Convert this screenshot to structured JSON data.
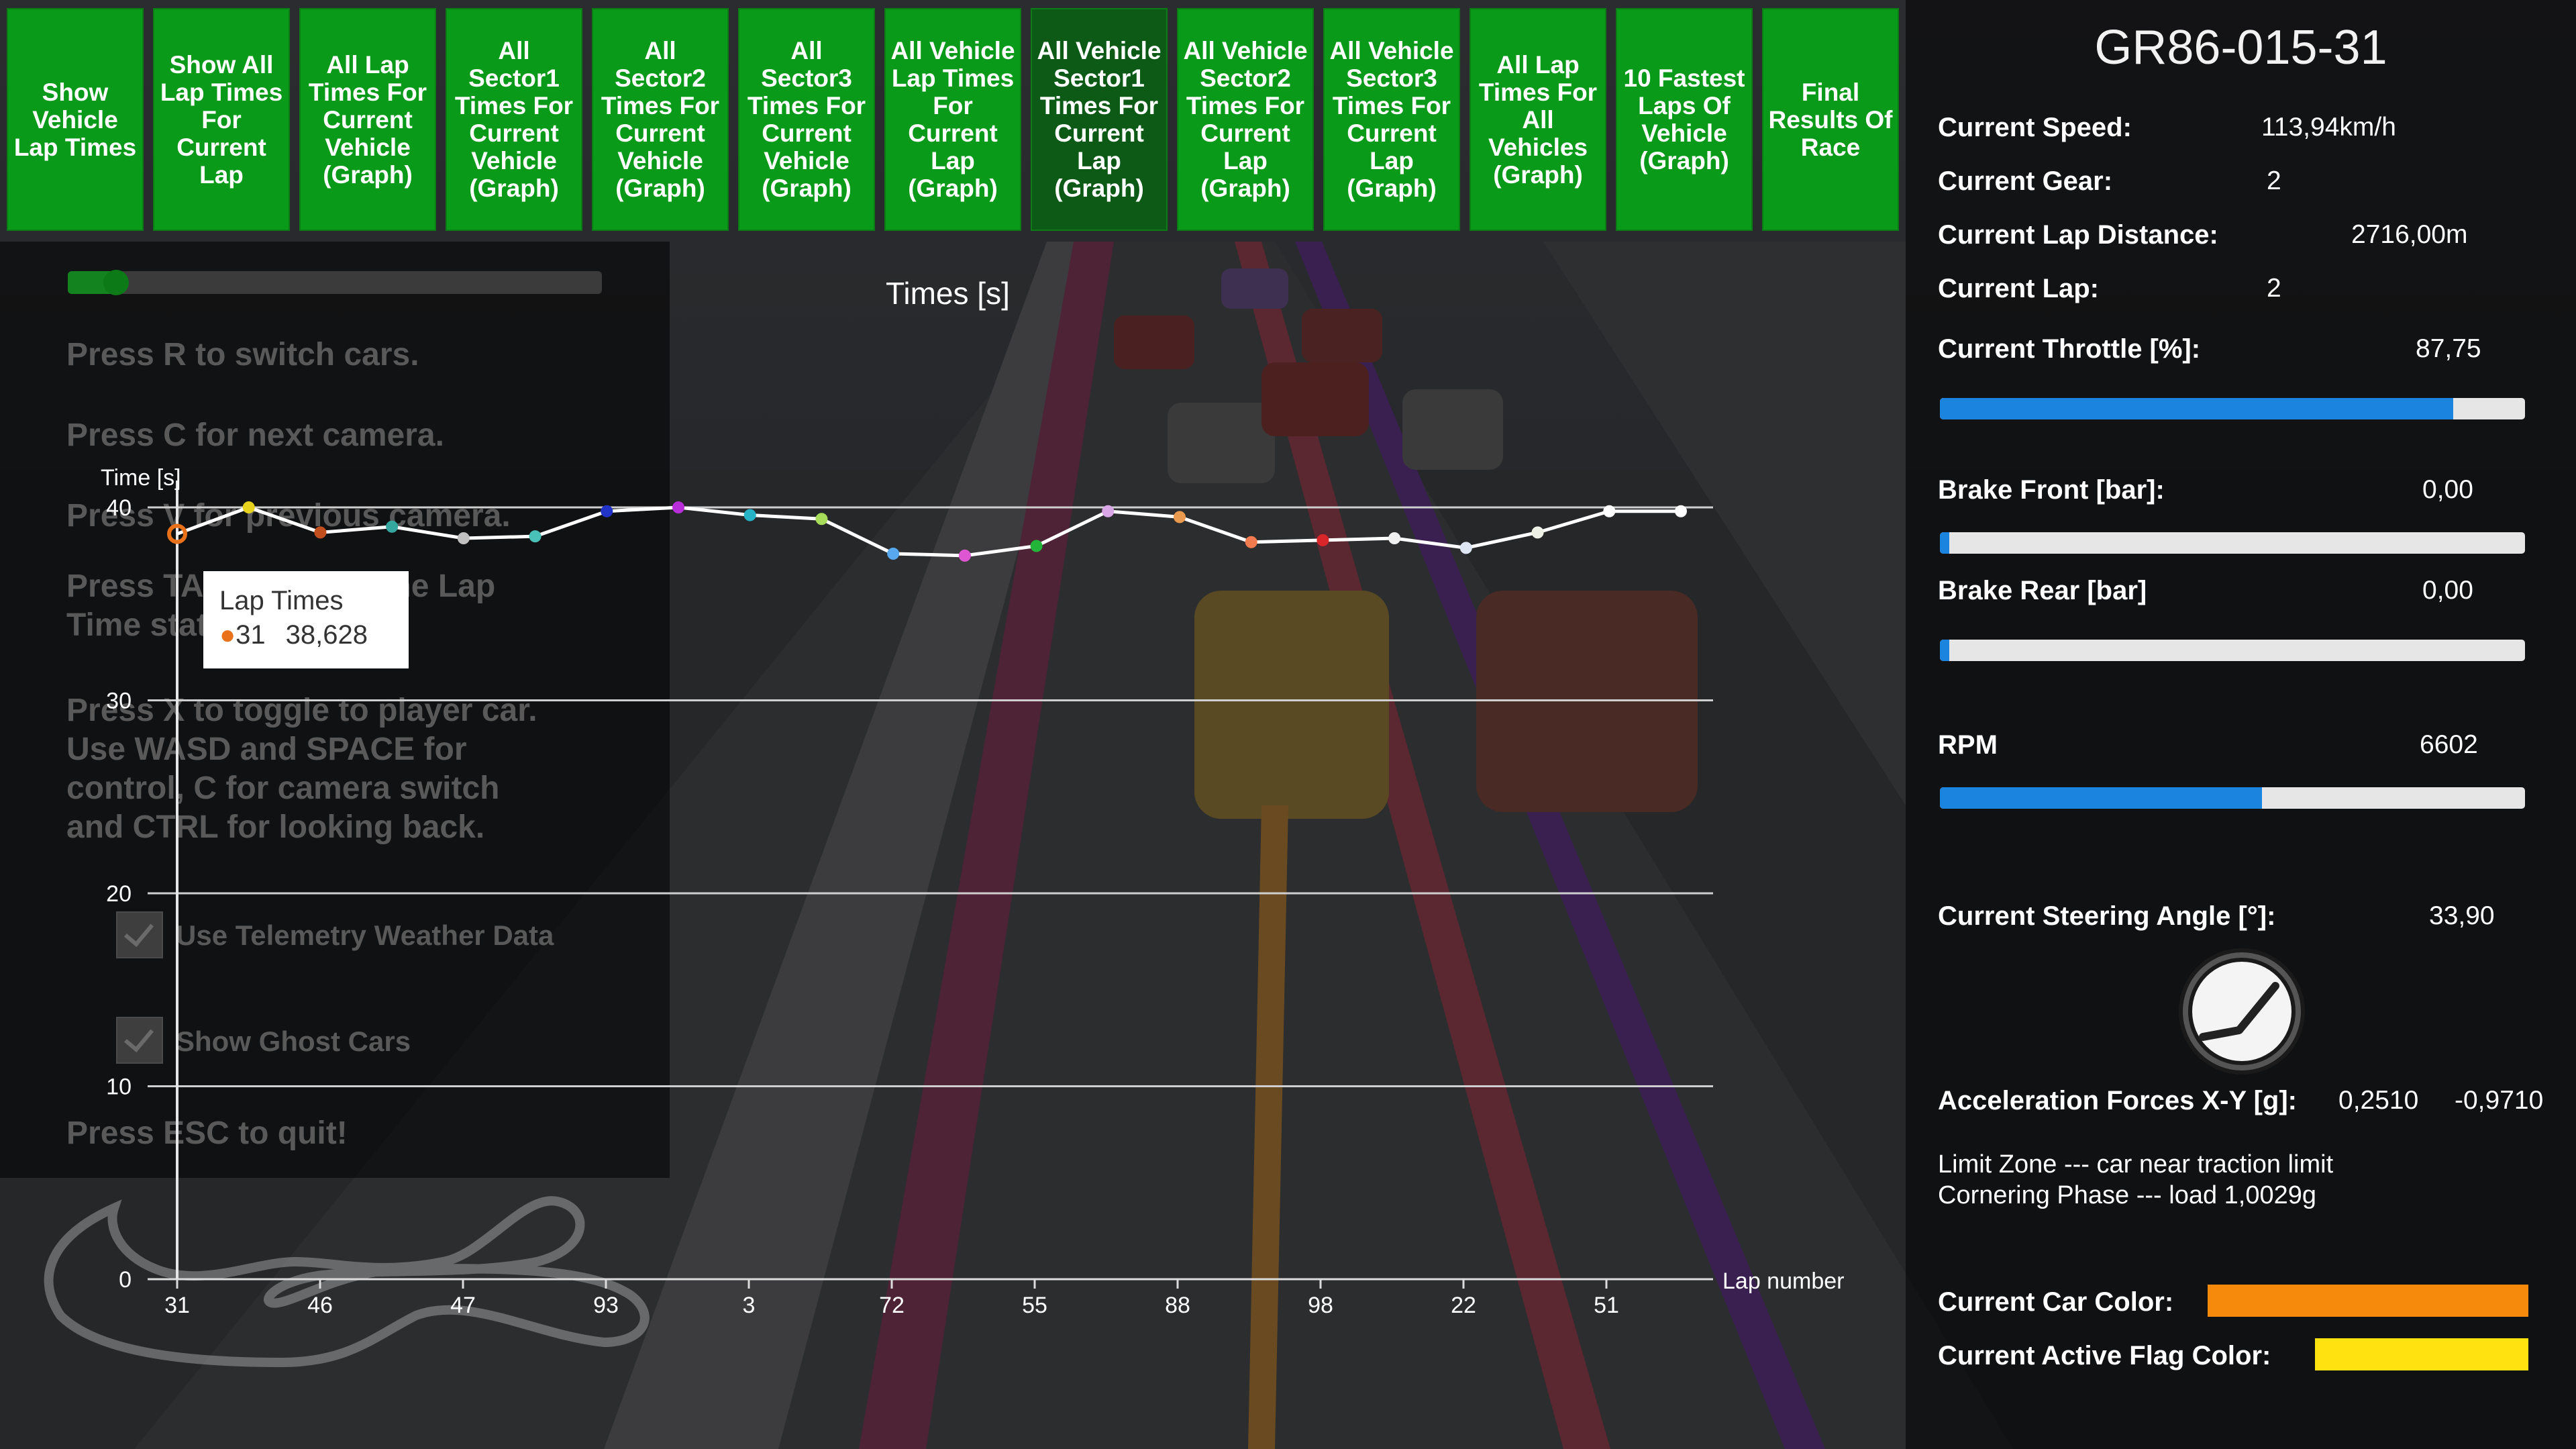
{
  "toolbar": {
    "buttons": [
      {
        "label": "Show Vehicle Lap Times",
        "active": false
      },
      {
        "label": "Show All Lap Times For Current Lap",
        "active": false
      },
      {
        "label": "All Lap Times For Current Vehicle (Graph)",
        "active": false
      },
      {
        "label": "All Sector1 Times For Current Vehicle (Graph)",
        "active": false
      },
      {
        "label": "All Sector2 Times For Current Vehicle (Graph)",
        "active": false
      },
      {
        "label": "All Sector3 Times For Current Vehicle (Graph)",
        "active": false
      },
      {
        "label": "All Vehicle Lap Times For Current Lap (Graph)",
        "active": false
      },
      {
        "label": "All Vehicle Sector1 Times For Current Lap (Graph)",
        "active": true
      },
      {
        "label": "All Vehicle Sector2 Times For Current Lap (Graph)",
        "active": false
      },
      {
        "label": "All Vehicle Sector3 Times For Current Lap (Graph)",
        "active": false
      },
      {
        "label": "All Lap Times For All Vehicles (Graph)",
        "active": false
      },
      {
        "label": "10 Fastest Laps Of Vehicle (Graph)",
        "active": false
      },
      {
        "label": "Final Results Of Race",
        "active": false
      }
    ]
  },
  "menu": {
    "slider_value": 0.09,
    "hints": {
      "switch_cars": "Press R to switch cars.",
      "next_camera": "Press C for next camera.",
      "prev_camera": "Press V for previous camera.",
      "lap_time_stats": "Press TAB to toggle the Lap\nTime stats.",
      "player_car": "Press X to toggle to player car.\nUse WASD and SPACE for\ncontrol, C for camera switch\nand CTRL for looking back.",
      "quit": "Press ESC to quit!"
    },
    "checkboxes": {
      "weather": {
        "label": "Use Telemetry Weather Data",
        "checked": true
      },
      "ghost": {
        "label": "Show Ghost Cars",
        "checked": true
      }
    }
  },
  "chart_data": {
    "type": "line",
    "title": "Times [s]",
    "ylabel": "Time [s]",
    "xlabel": "Lap number",
    "ylim": [
      0,
      40
    ],
    "yticks": [
      0,
      10,
      20,
      30,
      40
    ],
    "x_tick_labels": [
      "31",
      "46",
      "47",
      "93",
      "3",
      "72",
      "55",
      "88",
      "98",
      "22",
      "51"
    ],
    "series": [
      {
        "name": "Lap Times",
        "values": [
          38.628,
          40.0,
          38.7,
          39.0,
          38.4,
          38.5,
          39.8,
          40.0,
          39.6,
          39.4,
          37.6,
          37.5,
          38.0,
          39.8,
          39.5,
          38.2,
          38.3,
          38.4,
          37.9,
          38.7,
          39.8,
          39.8
        ],
        "point_colors": [
          "#e8711a",
          "#e6d21e",
          "#c24e1e",
          "#35a7a0",
          "#c0c0c0",
          "#49c1b8",
          "#2233c8",
          "#b82ed8",
          "#27b3c6",
          "#a6dc5a",
          "#57a8ee",
          "#df56d3",
          "#23b53a",
          "#d9a6e6",
          "#e99a4e",
          "#f27a4f",
          "#d9262a",
          "#f0f0f0",
          "#dde6f2",
          "#eef2e6",
          "#ffffff",
          "#ffffff"
        ]
      }
    ],
    "tooltip": {
      "series": "Lap Times",
      "lap": "31",
      "value": "38,628"
    },
    "grid": true
  },
  "info": {
    "car_id": "GR86-015-31",
    "speed": {
      "label": "Current Speed:",
      "value": "113,94km/h"
    },
    "gear": {
      "label": "Current Gear:",
      "value": "2"
    },
    "lap_distance": {
      "label": "Current Lap Distance:",
      "value": "2716,00m"
    },
    "lap": {
      "label": "Current Lap:",
      "value": "2"
    },
    "throttle": {
      "label": "Current Throttle [%]:",
      "value": "87,75",
      "level": 0.8775
    },
    "brake_front": {
      "label": "Brake Front [bar]:",
      "value": "0,00",
      "level": 0.0
    },
    "brake_rear": {
      "label": "Brake Rear [bar]",
      "value": "0,00",
      "level": 0.0
    },
    "rpm": {
      "label": "RPM",
      "value": "6602",
      "level": 0.55
    },
    "steering": {
      "label": "Current Steering Angle [°]:",
      "value": "33,90"
    },
    "acceleration": {
      "label": "Acceleration Forces X-Y [g]:",
      "x": "0,2510",
      "y": "-0,9710"
    },
    "status_lines": "Limit Zone --- car near traction limit\nCornering Phase --- load 1,0029g",
    "car_color": {
      "label": "Current Car Color:",
      "color": "#f58a0c"
    },
    "flag_color": {
      "label": "Current Active Flag Color:",
      "color": "#ffe20f"
    }
  }
}
